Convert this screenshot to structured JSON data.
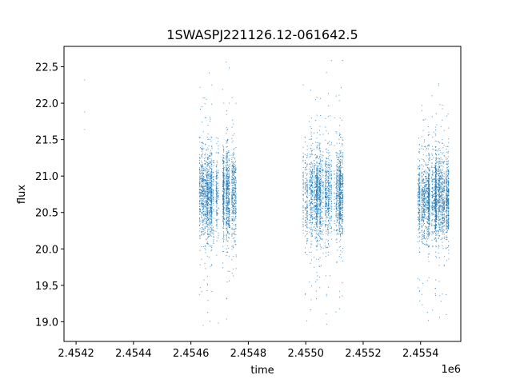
{
  "chart_data": {
    "type": "scatter",
    "title": "1SWASPJ221126.12-061642.5",
    "xlabel": "time",
    "ylabel": "flux",
    "x_offset_label": "1e6",
    "xlim": [
      2454158,
      2455540
    ],
    "ylim": [
      18.73,
      22.78
    ],
    "xticks": [
      2454200,
      2454400,
      2454600,
      2454800,
      2455000,
      2455200,
      2455400
    ],
    "xtick_labels": [
      "2.4542",
      "2.4544",
      "2.4546",
      "2.4548",
      "2.4550",
      "2.4552",
      "2.4554"
    ],
    "yticks": [
      19.0,
      19.5,
      20.0,
      20.5,
      21.0,
      21.5,
      22.0,
      22.5
    ],
    "ytick_labels": [
      "19.0",
      "19.5",
      "20.0",
      "20.5",
      "21.0",
      "21.5",
      "22.0",
      "22.5"
    ],
    "grid": false,
    "color": "#1f77b4",
    "isolated_points": [
      {
        "x": 2454230,
        "y": 22.32
      },
      {
        "x": 2454230,
        "y": 21.88
      },
      {
        "x": 2454230,
        "y": 21.64
      }
    ],
    "observing_seasons": [
      {
        "x_range": [
          2454625,
          2454760
        ],
        "median_flux": 20.75,
        "spread": 0.3,
        "flux_range": [
          18.9,
          22.6
        ]
      },
      {
        "x_range": [
          2454990,
          2455130
        ],
        "median_flux": 20.75,
        "spread": 0.3,
        "flux_range": [
          18.95,
          22.6
        ]
      },
      {
        "x_range": [
          2455390,
          2455500
        ],
        "median_flux": 20.7,
        "spread": 0.28,
        "flux_range": [
          18.9,
          22.6
        ]
      }
    ]
  }
}
